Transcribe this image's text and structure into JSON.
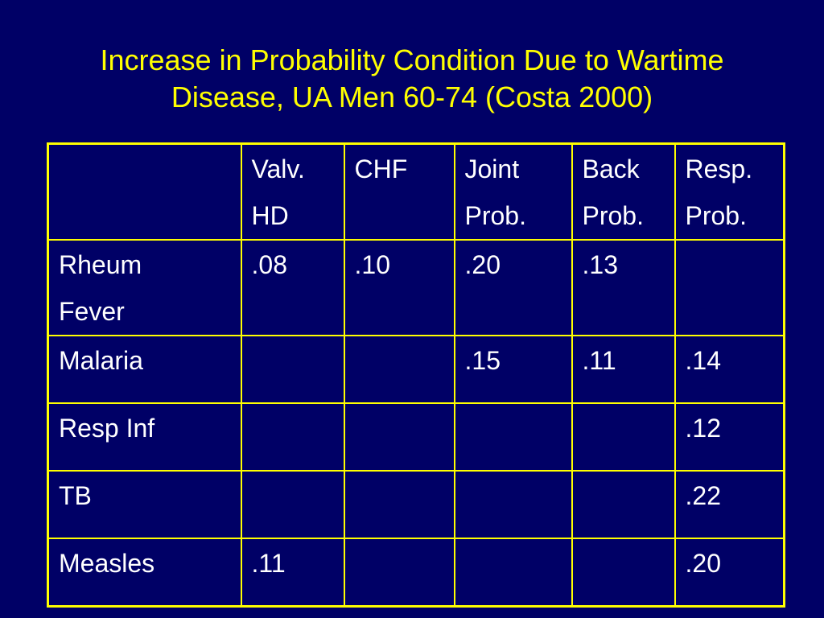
{
  "title": {
    "line1": "Increase in Probability Condition Due to Wartime",
    "line2": "Disease, UA Men 60-74 (Costa 2000)"
  },
  "table": {
    "header": [
      [
        ""
      ],
      [
        "Valv.",
        "HD"
      ],
      [
        "CHF"
      ],
      [
        "Joint",
        "Prob."
      ],
      [
        "Back",
        "Prob."
      ],
      [
        "Resp.",
        "Prob."
      ]
    ],
    "rows": [
      {
        "label": [
          "Rheum",
          "Fever"
        ],
        "cells": [
          ".08",
          ".10",
          ".20",
          ".13",
          ""
        ]
      },
      {
        "label": [
          "Malaria"
        ],
        "cells": [
          "",
          "",
          ".15",
          ".11",
          ".14"
        ]
      },
      {
        "label": [
          "Resp Inf"
        ],
        "cells": [
          "",
          "",
          "",
          "",
          ".12"
        ]
      },
      {
        "label": [
          "TB"
        ],
        "cells": [
          "",
          "",
          "",
          "",
          ".22"
        ]
      },
      {
        "label": [
          "Measles"
        ],
        "cells": [
          ".11",
          "",
          "",
          "",
          ".20"
        ]
      }
    ]
  }
}
